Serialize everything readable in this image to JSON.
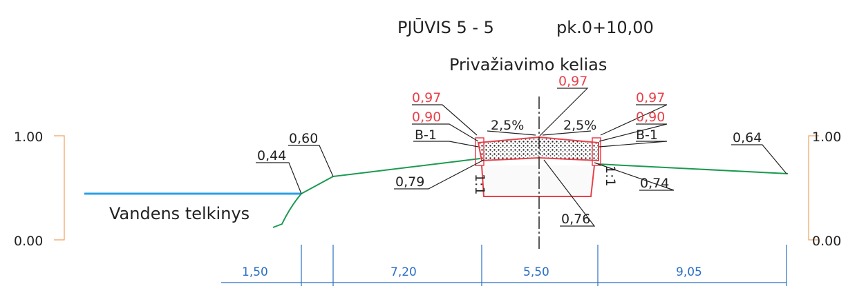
{
  "title": {
    "section": "PJŪVIS  5 - 5",
    "station": "pk.0+10,00"
  },
  "road_name": "Privažiavimo kelias",
  "water_label": "Vandens telkinys",
  "scale": {
    "left": {
      "top": "1.00",
      "bottom": "0.00"
    },
    "right": {
      "top": "1.00",
      "bottom": "0.00"
    }
  },
  "elevations": {
    "bank_low": "0,44",
    "bank_top": "0,60",
    "left_edge_top": "0,97",
    "left_edge_bottom": "0,90",
    "axis_top": "0,97",
    "right_edge_top": "0,97",
    "right_edge_bottom": "0,90",
    "left_foot": "0,79",
    "axis_bottom": "0,76",
    "right_foot": "0,74",
    "far_right": "0,64"
  },
  "layers": {
    "left": "B-1",
    "right": "B-1"
  },
  "cross_slopes": {
    "left": "2,5%",
    "right": "2,5%"
  },
  "embankment_slopes": {
    "left": "1:1",
    "right": "1:1"
  },
  "dimensions": [
    "1,50",
    "7,20",
    "5,50",
    "9,05"
  ]
}
